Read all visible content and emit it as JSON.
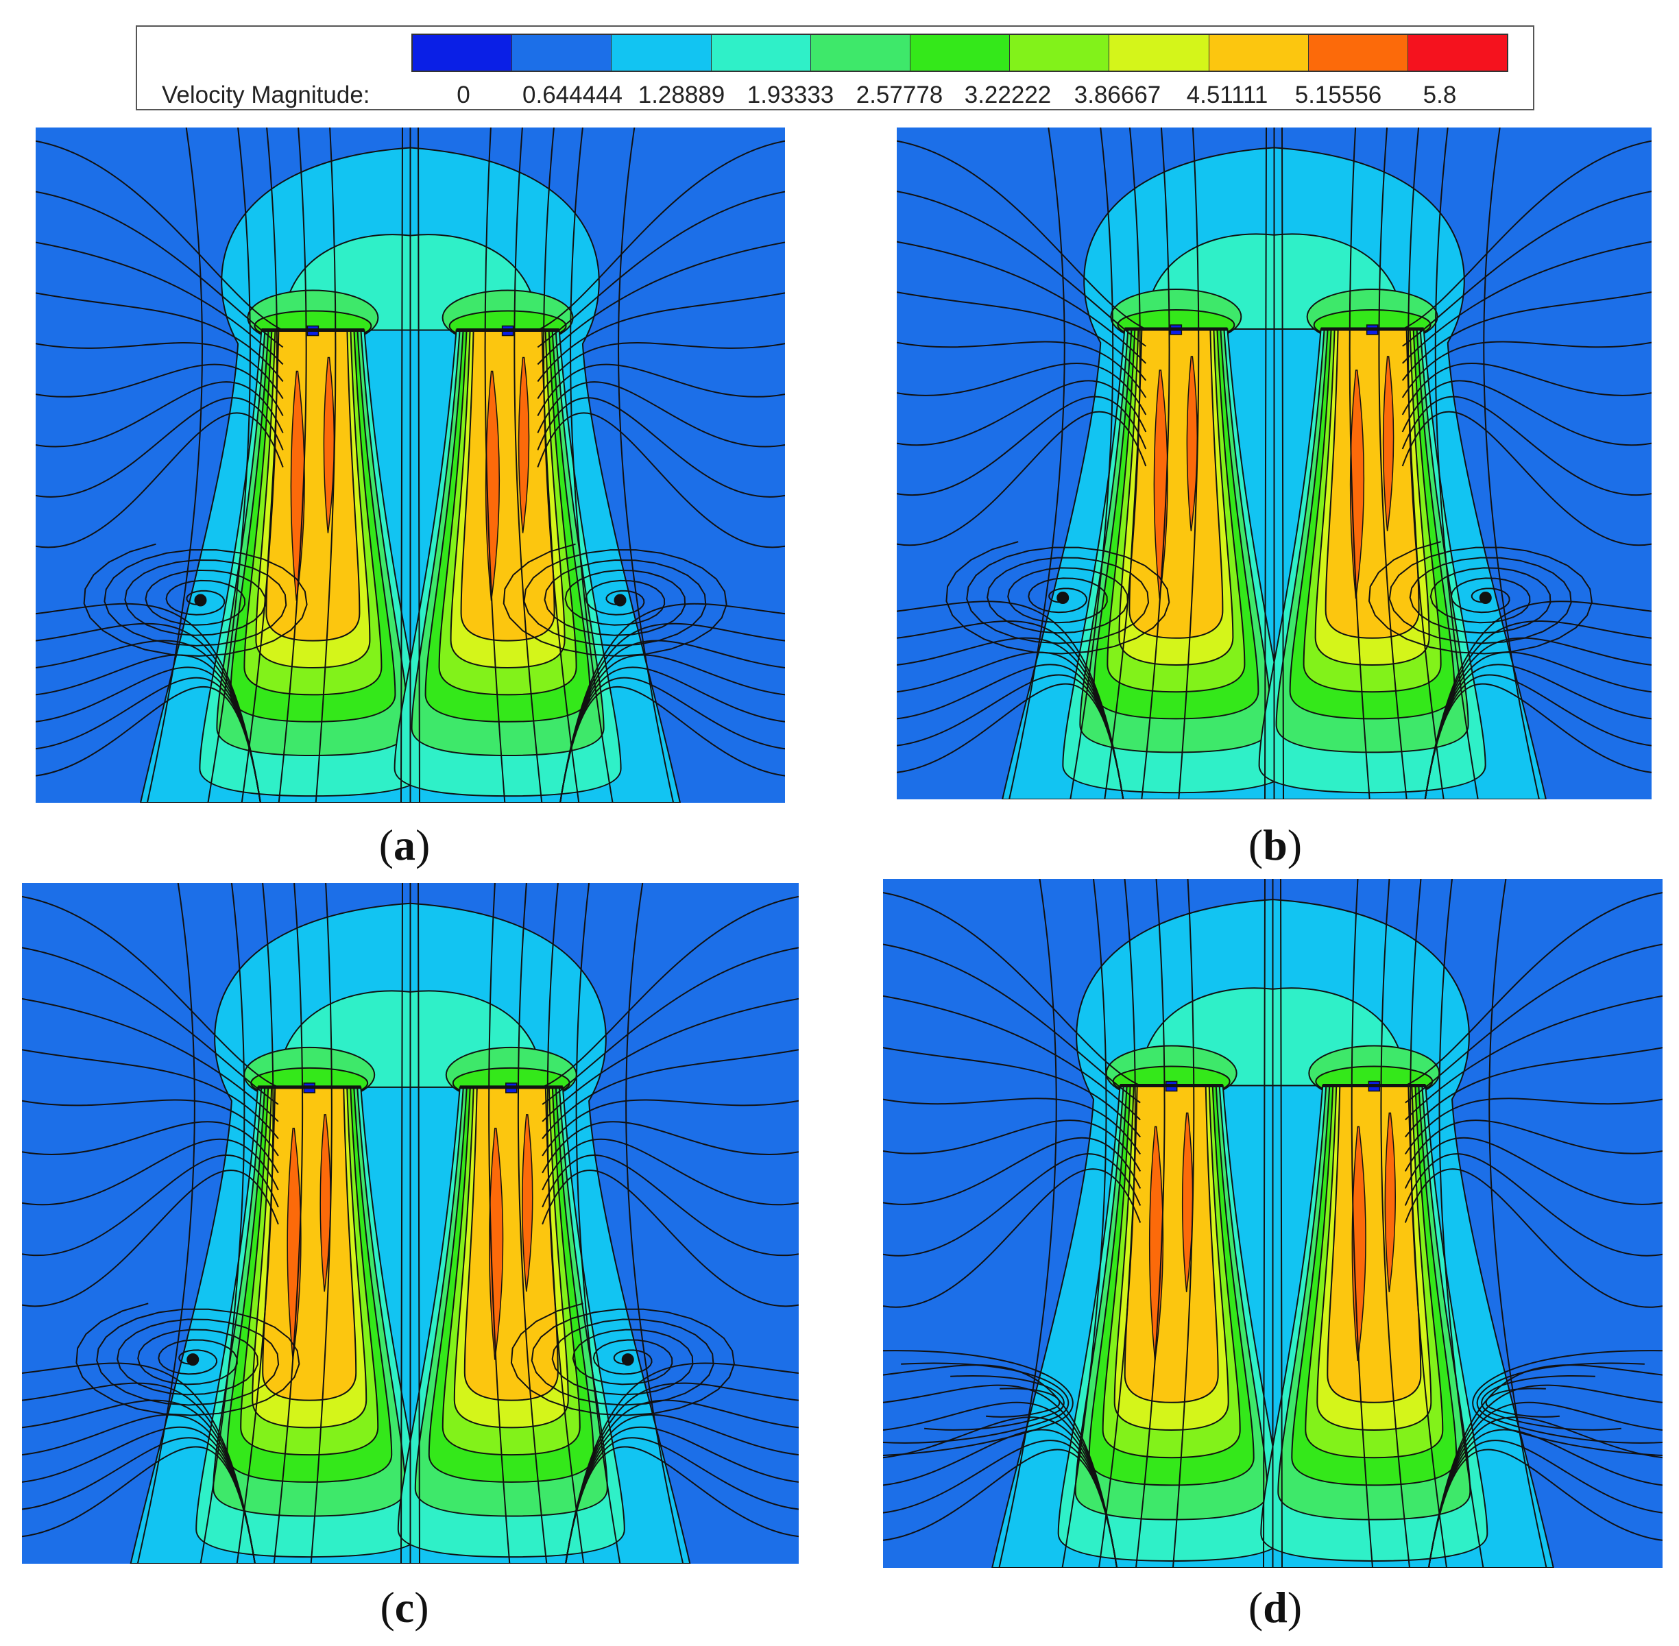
{
  "legend": {
    "title": "Velocity Magnitude:",
    "ticks": [
      "0",
      "0.644444",
      "1.28889",
      "1.93333",
      "2.57778",
      "3.22222",
      "3.86667",
      "4.51111",
      "5.15556",
      "5.8"
    ],
    "colors": [
      "#0a1fe6",
      "#1c6fe8",
      "#12c4f2",
      "#2ff0c8",
      "#3ee86a",
      "#34e81a",
      "#82f21a",
      "#d4f51a",
      "#fcc60f",
      "#fc6a0a",
      "#f5121e"
    ]
  },
  "panels": [
    {
      "id": "a",
      "label": "a",
      "vortex_style": "spiral"
    },
    {
      "id": "b",
      "label": "b",
      "vortex_style": "spiral"
    },
    {
      "id": "c",
      "label": "c",
      "vortex_style": "spiral"
    },
    {
      "id": "d",
      "label": "d",
      "vortex_style": "hook"
    }
  ],
  "field_colors": {
    "background": "#1c6fe8",
    "outer": "#12c4f2",
    "mid": "#2ff0c8",
    "band1": "#3ee86a",
    "band2": "#34e81a",
    "band3": "#82f21a",
    "band4": "#d4f51a",
    "core": "#fcc60f",
    "hot": "#fc6a0a",
    "line": "#111111"
  }
}
